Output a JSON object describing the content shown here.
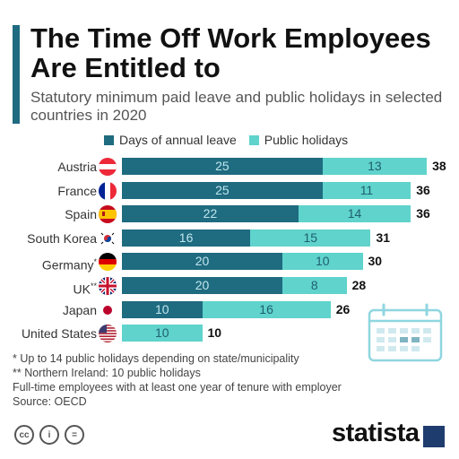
{
  "header": {
    "title": "The Time Off Work Employees Are Entitled to",
    "subtitle": "Statutory minimum paid leave and public holidays in selected countries in 2020"
  },
  "colors": {
    "accent": "#1f6b80",
    "annual_leave": "#1f6b80",
    "public_holidays": "#5fd3cc"
  },
  "chart_data": {
    "type": "bar",
    "orientation": "horizontal",
    "stacked": true,
    "categories": [
      "Austria",
      "France",
      "Spain",
      "South Korea",
      "Germany*",
      "UK**",
      "Japan",
      "United States"
    ],
    "flags": [
      "flag-austria-icon",
      "flag-france-icon",
      "flag-spain-icon",
      "flag-south-korea-icon",
      "flag-germany-icon",
      "flag-uk-icon",
      "flag-japan-icon",
      "flag-united-states-icon"
    ],
    "series": [
      {
        "name": "Days of annual leave",
        "values": [
          25,
          25,
          22,
          16,
          20,
          20,
          10,
          0
        ]
      },
      {
        "name": "Public holidays",
        "values": [
          13,
          11,
          14,
          15,
          10,
          8,
          16,
          10
        ]
      }
    ],
    "totals": [
      38,
      36,
      36,
      31,
      30,
      28,
      26,
      10
    ],
    "legend_position": "top",
    "grid": false,
    "xlim": [
      0,
      40
    ]
  },
  "notes": {
    "note1": "*   Up to 14 public holidays depending on state/municipality",
    "note2": "** Northern Ireland: 10 public holidays",
    "note3": "Full-time employees with at least one year of tenure with employer",
    "source": "Source: OECD"
  },
  "footer": {
    "cc_labels": [
      "cc",
      "i",
      "="
    ],
    "brand": "statista"
  },
  "icons": {
    "calendar": "calendar-icon"
  }
}
